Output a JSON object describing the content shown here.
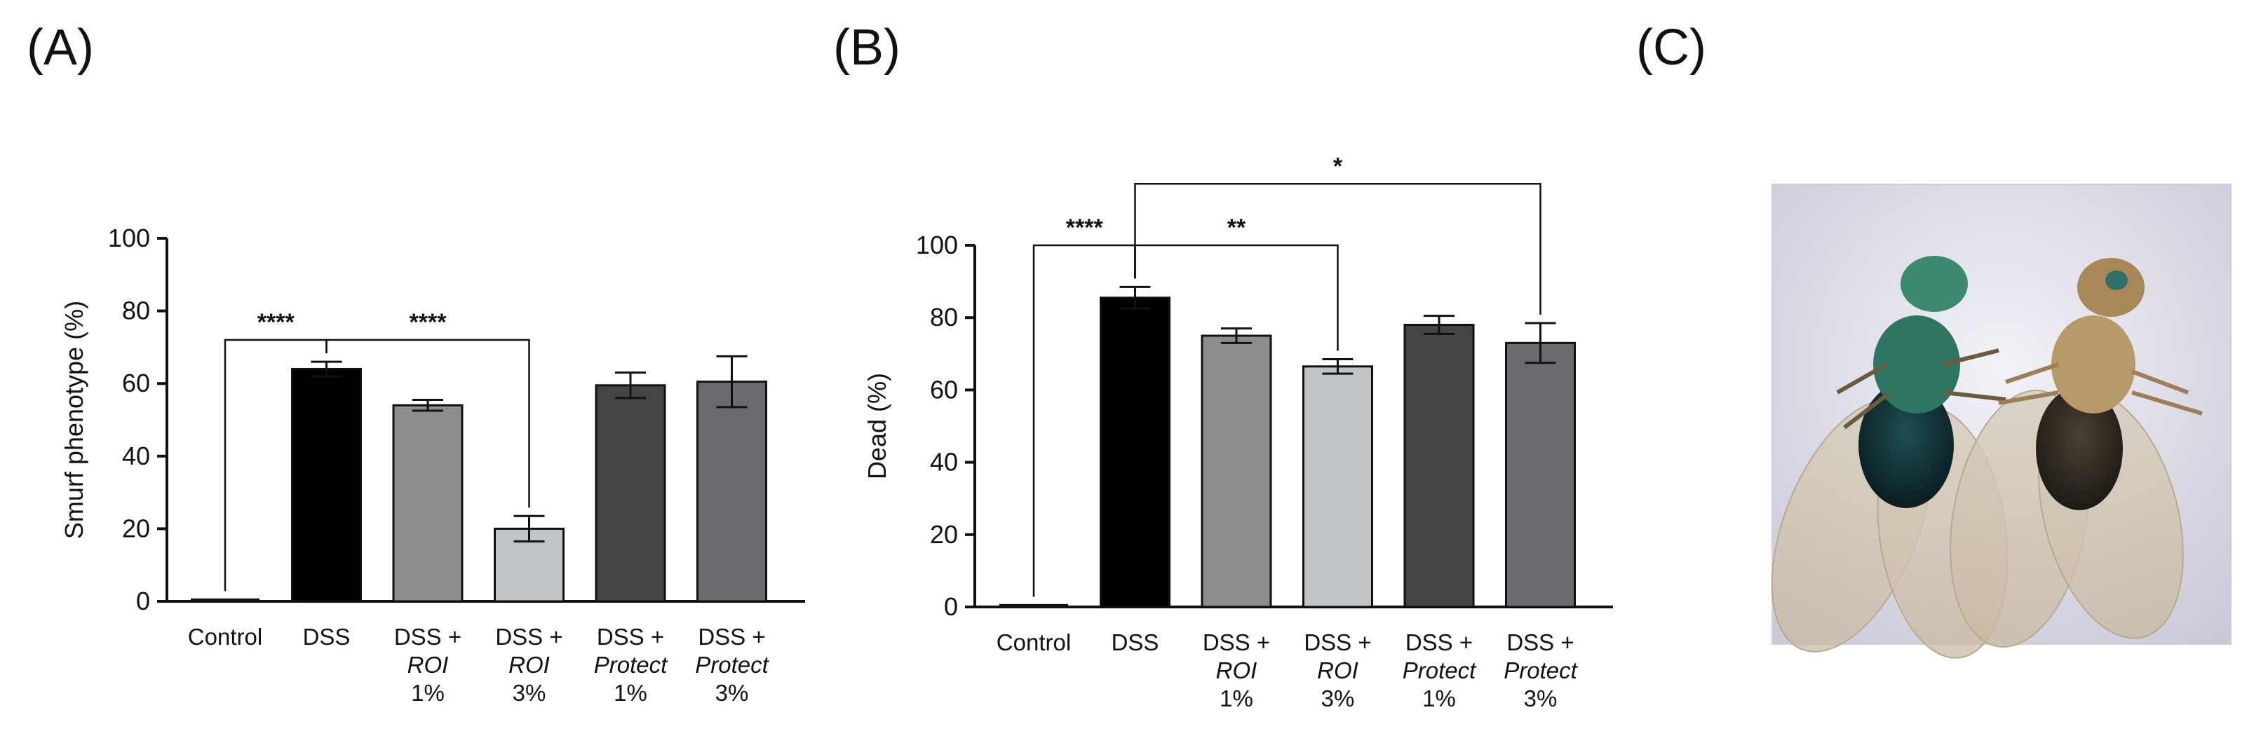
{
  "panels": {
    "a": "(A)",
    "b": "(B)",
    "c": "(C)"
  },
  "colors": {
    "control": "#ffffff",
    "dss": "#000000",
    "roi1": "#8c8c8f",
    "roi3": "#c0c4c7",
    "protect1": "#444446",
    "protect3": "#6a6a6f",
    "photo_bg": "#e6e6ef"
  },
  "chart_data": [
    {
      "type": "bar",
      "id": "A",
      "ylabel": "Smurf phenotype (%)",
      "xlabel": "",
      "ylim": [
        0,
        100
      ],
      "yticks": [
        0,
        20,
        40,
        60,
        80,
        100
      ],
      "categories": [
        {
          "lines": [
            "Control"
          ],
          "italic": [
            false
          ]
        },
        {
          "lines": [
            "DSS"
          ],
          "italic": [
            false
          ]
        },
        {
          "lines": [
            "DSS +",
            "ROI",
            "1%"
          ],
          "italic": [
            false,
            true,
            false
          ]
        },
        {
          "lines": [
            "DSS +",
            "ROI",
            "3%"
          ],
          "italic": [
            false,
            true,
            false
          ]
        },
        {
          "lines": [
            "DSS +",
            "Protect",
            "1%"
          ],
          "italic": [
            false,
            true,
            false
          ]
        },
        {
          "lines": [
            "DSS +",
            "Protect",
            "3%"
          ],
          "italic": [
            false,
            true,
            false
          ]
        }
      ],
      "values": [
        0.5,
        64,
        54,
        20,
        59.5,
        60.5
      ],
      "errors": [
        0,
        2,
        1.5,
        3.5,
        3.5,
        7
      ],
      "fills": [
        "control",
        "dss",
        "roi1",
        "roi3",
        "protect1",
        "protect3"
      ],
      "significance": [
        {
          "from": 0,
          "to": 1,
          "label": "****",
          "level": 72
        },
        {
          "from": 1,
          "to": 3,
          "label": "****",
          "level": 72
        }
      ]
    },
    {
      "type": "bar",
      "id": "B",
      "ylabel": "Dead (%)",
      "xlabel": "",
      "ylim": [
        0,
        100
      ],
      "yticks": [
        0,
        20,
        40,
        60,
        80,
        100
      ],
      "categories": [
        {
          "lines": [
            "Control"
          ],
          "italic": [
            false
          ]
        },
        {
          "lines": [
            "DSS"
          ],
          "italic": [
            false
          ]
        },
        {
          "lines": [
            "DSS +",
            "ROI",
            "1%"
          ],
          "italic": [
            false,
            true,
            false
          ]
        },
        {
          "lines": [
            "DSS +",
            "ROI",
            "3%"
          ],
          "italic": [
            false,
            true,
            false
          ]
        },
        {
          "lines": [
            "DSS +",
            "Protect",
            "1%"
          ],
          "italic": [
            false,
            true,
            false
          ]
        },
        {
          "lines": [
            "DSS +",
            "Protect",
            "3%"
          ],
          "italic": [
            false,
            true,
            false
          ]
        }
      ],
      "values": [
        0.5,
        85.5,
        75,
        66.5,
        78,
        73
      ],
      "errors": [
        0,
        3,
        2,
        2,
        2.5,
        5.5
      ],
      "fills": [
        "control",
        "dss",
        "roi1",
        "roi3",
        "protect1",
        "protect3"
      ],
      "significance": [
        {
          "from": 0,
          "to": 1,
          "label": "****",
          "level": 100
        },
        {
          "from": 1,
          "to": 3,
          "label": "**",
          "level": 100
        },
        {
          "from": 1,
          "to": 5,
          "label": "*",
          "level": 117
        }
      ]
    }
  ]
}
